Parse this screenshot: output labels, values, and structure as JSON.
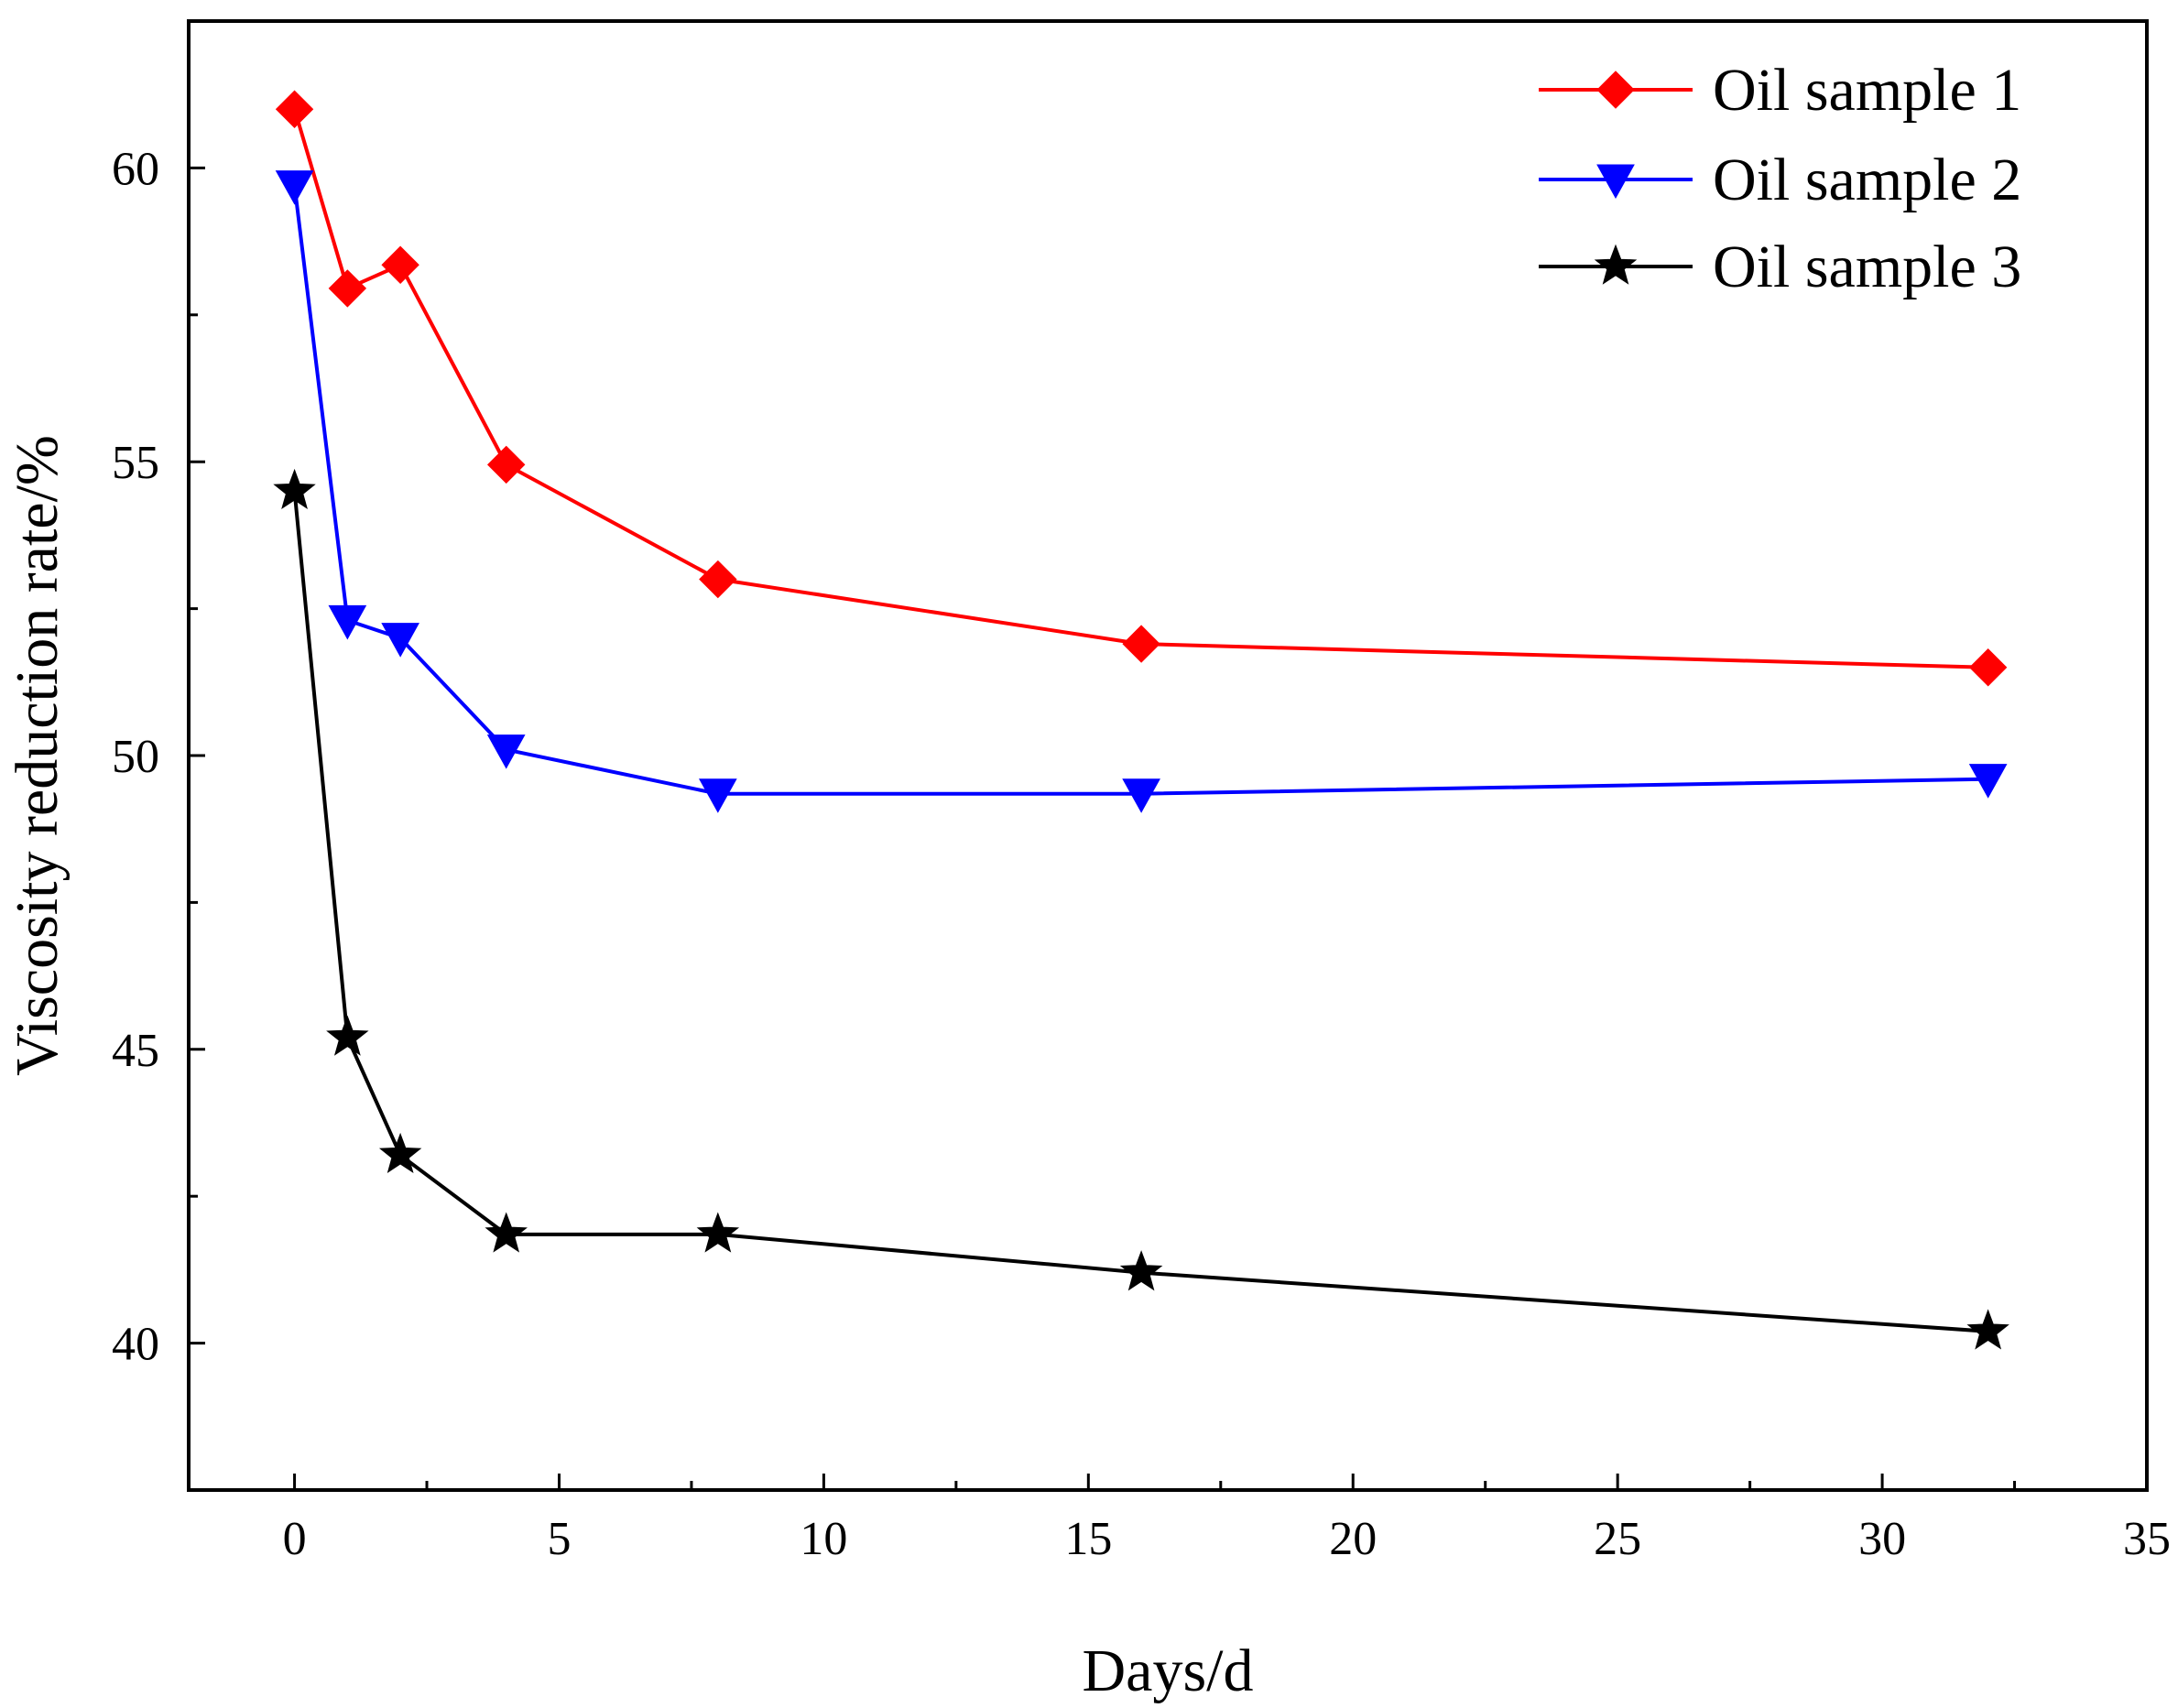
{
  "chart_data": {
    "type": "line",
    "title": "",
    "xlabel": "Days/d",
    "ylabel": "Viscosity reduction rate/%",
    "xlim": [
      -2,
      35
    ],
    "ylim": [
      37.5,
      62.5
    ],
    "xticks": [
      0,
      5,
      10,
      15,
      20,
      25,
      30,
      35
    ],
    "yticks": [
      40,
      45,
      50,
      55,
      60
    ],
    "xtick_labels": [
      "0",
      "5",
      "10",
      "15",
      "20",
      "25",
      "30",
      "35"
    ],
    "ytick_labels": [
      "40",
      "45",
      "50",
      "55",
      "60"
    ],
    "x": [
      0,
      1,
      2,
      4,
      8,
      16,
      32
    ],
    "legend_position": "top-right",
    "grid": false,
    "series": [
      {
        "name": "Oil sample 1",
        "color": "#ff0000",
        "marker": "diamond",
        "values": [
          61.0,
          57.95,
          58.35,
          54.95,
          53.0,
          51.9,
          51.5
        ]
      },
      {
        "name": "Oil sample 2",
        "color": "#0000ff",
        "marker": "triangle-down",
        "values": [
          59.7,
          52.3,
          52.0,
          50.1,
          49.35,
          49.35,
          49.6
        ]
      },
      {
        "name": "Oil sample 3",
        "color": "#000000",
        "marker": "star",
        "values": [
          54.5,
          45.2,
          43.2,
          41.85,
          41.85,
          41.2,
          40.2
        ]
      }
    ]
  }
}
